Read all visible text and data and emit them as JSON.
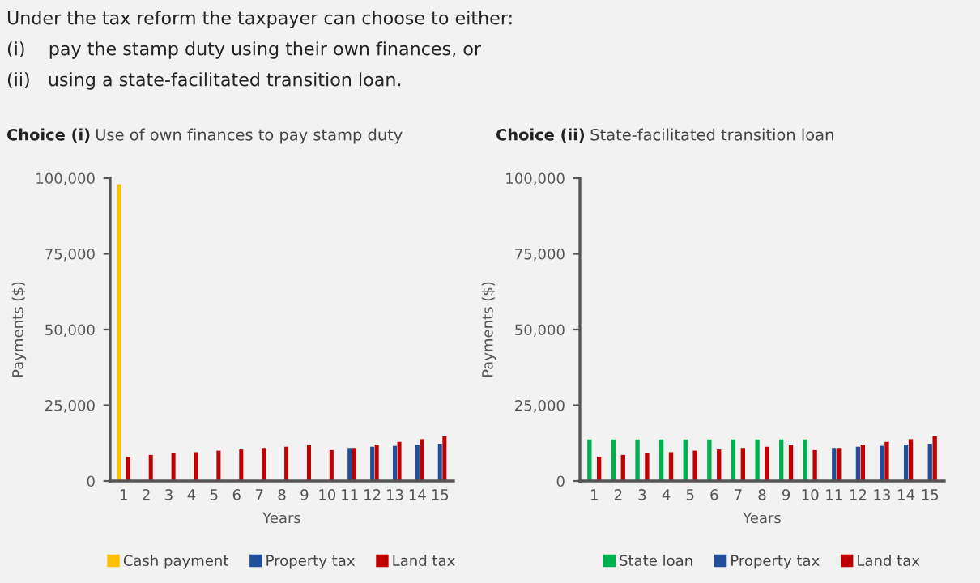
{
  "chart_data": [
    {
      "type": "bar",
      "title": "Choice (i)",
      "subtitle": "Use of own finances to pay stamp duty",
      "xlabel": "Years",
      "ylabel": "Payments ($)",
      "annotations": [
        "Under the tax reform the taxpayer can choose to either:",
        "(i)    pay the stamp duty using their own finances, or",
        "(ii)   using a state-facilitated transition loan."
      ],
      "categories": [
        "1",
        "2",
        "3",
        "4",
        "5",
        "6",
        "7",
        "8",
        "9",
        "10",
        "11",
        "12",
        "13",
        "14",
        "15"
      ],
      "series": [
        {
          "name": "Cash payment",
          "color": "#ffc000",
          "values": [
            98000,
            null,
            null,
            null,
            null,
            null,
            null,
            null,
            null,
            null,
            null,
            null,
            null,
            null,
            null
          ]
        },
        {
          "name": "Property tax",
          "color": "#1f4e9b",
          "values": [
            null,
            null,
            null,
            null,
            null,
            null,
            null,
            null,
            null,
            null,
            10900,
            11300,
            11600,
            12000,
            12300
          ]
        },
        {
          "name": "Land tax",
          "color": "#c00000",
          "values": [
            8000,
            8600,
            9100,
            9500,
            10000,
            10400,
            10900,
            11300,
            11800,
            10200,
            10900,
            12000,
            12900,
            13800,
            14800
          ]
        }
      ],
      "ylim": [
        0,
        100000
      ],
      "yticks": [
        {
          "value": 0,
          "label": "0"
        },
        {
          "value": 25000,
          "label": "25,000"
        },
        {
          "value": 50000,
          "label": "50,000"
        },
        {
          "value": 75000,
          "label": "75,000"
        },
        {
          "value": 100000,
          "label": "100,000"
        }
      ],
      "grid": false,
      "legend": "bottom"
    },
    {
      "type": "bar",
      "title": "Choice (ii)",
      "subtitle": "State-facilitated transition loan",
      "xlabel": "Years",
      "ylabel": "Payments ($)",
      "categories": [
        "1",
        "2",
        "3",
        "4",
        "5",
        "6",
        "7",
        "8",
        "9",
        "10",
        "11",
        "12",
        "13",
        "14",
        "15"
      ],
      "series": [
        {
          "name": "State loan",
          "color": "#00b050",
          "values": [
            13700,
            13700,
            13700,
            13700,
            13700,
            13700,
            13700,
            13700,
            13700,
            13700,
            null,
            null,
            null,
            null,
            null
          ]
        },
        {
          "name": "Property tax",
          "color": "#1f4e9b",
          "values": [
            null,
            null,
            null,
            null,
            null,
            null,
            null,
            null,
            null,
            null,
            10900,
            11300,
            11600,
            12000,
            12300
          ]
        },
        {
          "name": "Land tax",
          "color": "#c00000",
          "values": [
            8000,
            8600,
            9100,
            9500,
            10000,
            10400,
            10900,
            11300,
            11800,
            10200,
            10900,
            12000,
            12900,
            13800,
            14800
          ]
        }
      ],
      "ylim": [
        0,
        100000
      ],
      "yticks": [
        {
          "value": 0,
          "label": "0"
        },
        {
          "value": 25000,
          "label": "25,000"
        },
        {
          "value": 50000,
          "label": "50,000"
        },
        {
          "value": 75000,
          "label": "75,000"
        },
        {
          "value": 100000,
          "label": "100,000"
        }
      ],
      "grid": false,
      "legend": "bottom"
    }
  ]
}
